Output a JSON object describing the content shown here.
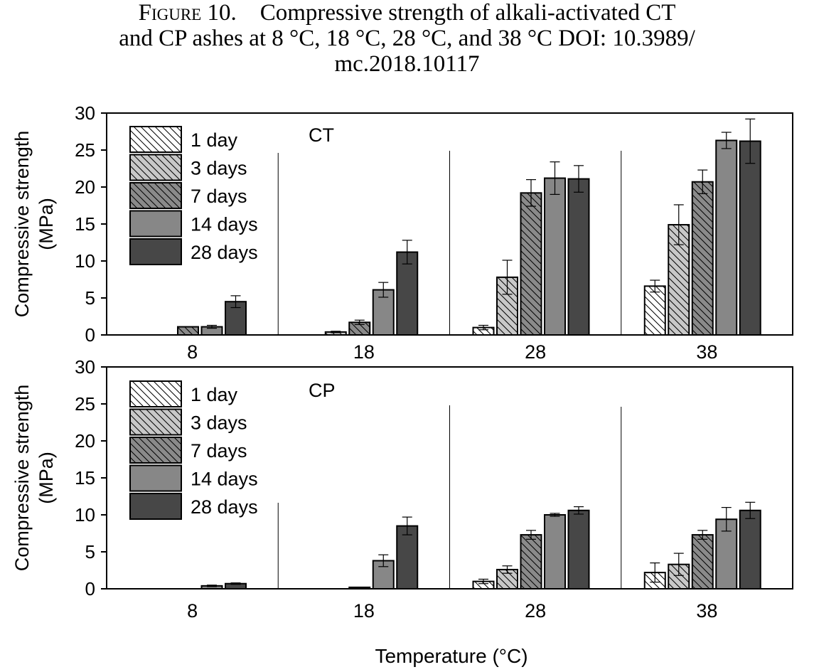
{
  "caption": {
    "label": "Figure 10.",
    "line1": "Compressive strength of alkali-activated CT",
    "line2": "and CP ashes at 8 °C, 18 °C, 28 °C, and 38 °C DOI: 10.3989/",
    "line3": "mc.2018.10117"
  },
  "xlabel": "Temperature (°C)",
  "chart_data": [
    {
      "type": "bar",
      "title": "CT",
      "ylabel": "Compressive strength (MPa)",
      "ylabel_lines": [
        "Compressive strength",
        "(MPa)"
      ],
      "categories": [
        "8",
        "18",
        "28",
        "38"
      ],
      "ylim": [
        0,
        30
      ],
      "yticks": [
        0,
        5,
        10,
        15,
        20,
        25,
        30
      ],
      "legend_position": "top-left",
      "series": [
        {
          "name": "1 day",
          "color": "#ffffff",
          "hatch": true,
          "values": [
            0,
            0,
            1.0,
            6.6
          ],
          "errors": [
            0,
            0,
            0.3,
            0.8
          ]
        },
        {
          "name": "3 days",
          "color": "#c8c8c8",
          "hatch": true,
          "values": [
            0,
            0.4,
            7.8,
            14.9
          ],
          "errors": [
            0,
            0.1,
            2.3,
            2.7
          ]
        },
        {
          "name": "7 days",
          "color": "#8a8a8a",
          "hatch": true,
          "values": [
            1.1,
            1.7,
            19.2,
            20.7
          ],
          "errors": [
            0,
            0.3,
            1.8,
            1.6
          ]
        },
        {
          "name": "14 days",
          "color": "#878787",
          "hatch": false,
          "values": [
            1.1,
            6.1,
            21.2,
            26.3
          ],
          "errors": [
            0.2,
            1.0,
            2.2,
            1.1
          ]
        },
        {
          "name": "28 days",
          "color": "#474747",
          "hatch": false,
          "values": [
            4.5,
            11.2,
            21.1,
            26.2
          ],
          "errors": [
            0.8,
            1.6,
            1.8,
            3.0
          ]
        }
      ]
    },
    {
      "type": "bar",
      "title": "CP",
      "ylabel": "Compressive strength (MPa)",
      "ylabel_lines": [
        "Compressive strength",
        "(MPa)"
      ],
      "categories": [
        "8",
        "18",
        "28",
        "38"
      ],
      "ylim": [
        0,
        30
      ],
      "yticks": [
        0,
        5,
        10,
        15,
        20,
        25,
        30
      ],
      "legend_position": "top-left",
      "series": [
        {
          "name": "1 day",
          "color": "#ffffff",
          "hatch": true,
          "values": [
            0,
            0,
            1.0,
            2.2
          ],
          "errors": [
            0,
            0,
            0.3,
            1.3
          ]
        },
        {
          "name": "3 days",
          "color": "#c8c8c8",
          "hatch": true,
          "values": [
            0,
            0,
            2.6,
            3.3
          ],
          "errors": [
            0,
            0,
            0.5,
            1.5
          ]
        },
        {
          "name": "7 days",
          "color": "#8a8a8a",
          "hatch": true,
          "values": [
            0,
            0.2,
            7.3,
            7.3
          ],
          "errors": [
            0,
            0,
            0.6,
            0.6
          ]
        },
        {
          "name": "14 days",
          "color": "#878787",
          "hatch": false,
          "values": [
            0.4,
            3.8,
            10.0,
            9.4
          ],
          "errors": [
            0.1,
            0.8,
            0.2,
            1.6
          ]
        },
        {
          "name": "28 days",
          "color": "#474747",
          "hatch": false,
          "values": [
            0.7,
            8.5,
            10.6,
            10.6
          ],
          "errors": [
            0.1,
            1.2,
            0.5,
            1.1
          ]
        }
      ]
    }
  ]
}
